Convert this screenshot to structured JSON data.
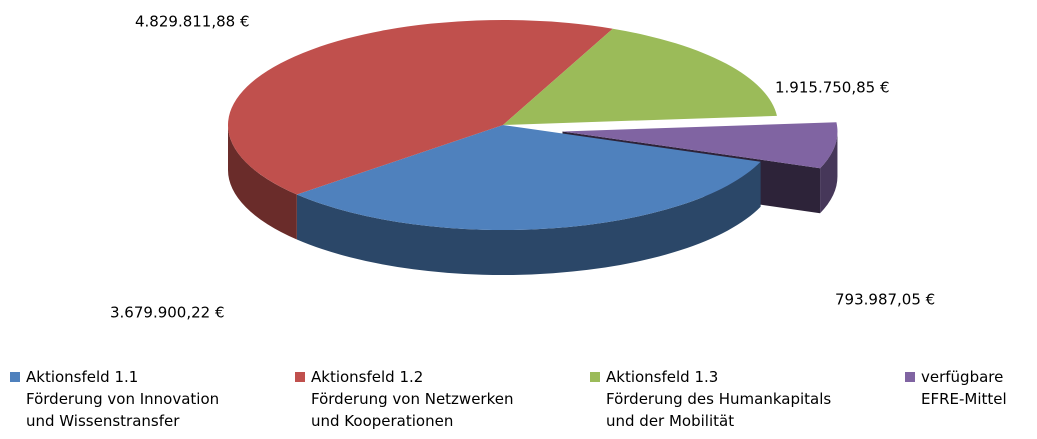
{
  "chart_data": {
    "type": "pie",
    "categories": [
      "Aktionsfeld 1.1\nFörderung von Innovation\nund Wissenstransfer",
      "Aktionsfeld 1.2\nFörderung von Netzwerken\nund Kooperationen",
      "Aktionsfeld 1.3\nFörderung des Humankapitals\nund der Mobilität",
      "verfügbare\nEFRE-Mittel"
    ],
    "values": [
      3679900.22,
      4829811.88,
      1915750.85,
      793987.05
    ],
    "value_labels": [
      "3.679.900,22 €",
      "4.829.811,88 €",
      "1.915.750,85 €",
      "793.987,05 €"
    ],
    "colors": [
      "#4f81bd",
      "#c0504d",
      "#9bbb59",
      "#8064a2"
    ],
    "legend": "bottom"
  }
}
